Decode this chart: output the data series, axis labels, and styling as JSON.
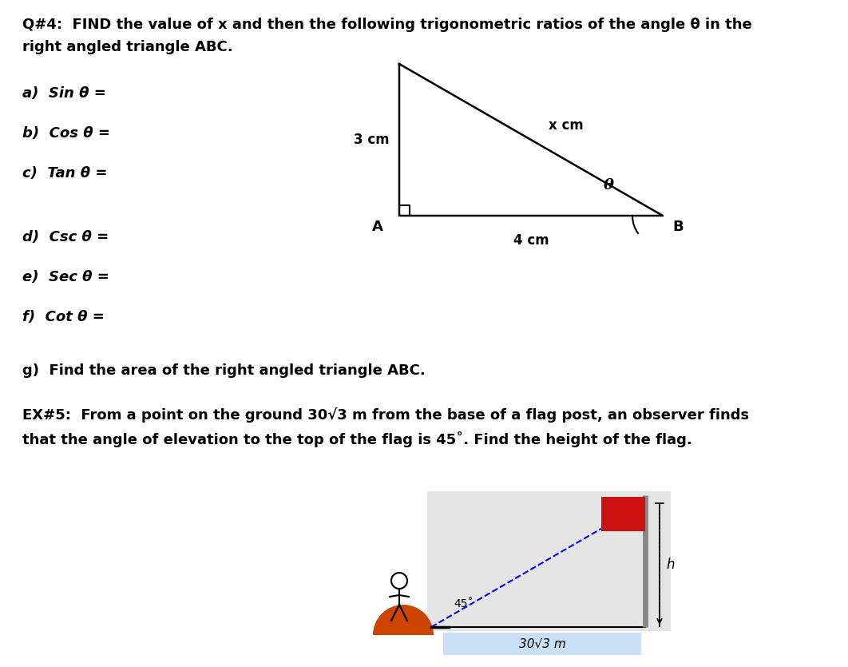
{
  "title_q4_line1": "Q#4:  FIND the value of x and then the following trigonometric ratios of the angle θ in the",
  "title_q4_line2": "right angled triangle ABC.",
  "parts_q4": [
    "a)  Sin θ =",
    "b)  Cos θ =",
    "c)  Tan θ =",
    "d)  Csc θ =",
    "e)  Sec θ =",
    "f)  Cot θ ="
  ],
  "part_g": "g)  Find the area of the right angled triangle ABC.",
  "title_ex5_line1": "EX#5:  From a point on the ground 30√3 m from the base of a flag post, an observer finds",
  "title_ex5_line2": "that the angle of elevation to the top of the flag is 45˚. Find the height of the flag.",
  "triangle_label_vertical": "3 cm",
  "triangle_label_horizontal": "4 cm",
  "triangle_label_hypotenuse": "x cm",
  "triangle_label_A": "A",
  "triangle_label_B": "B",
  "triangle_label_theta": "θ",
  "flag_angle": "45˚",
  "flag_distance": "30√3 m",
  "flag_h": "h",
  "bg_color": "#ffffff"
}
